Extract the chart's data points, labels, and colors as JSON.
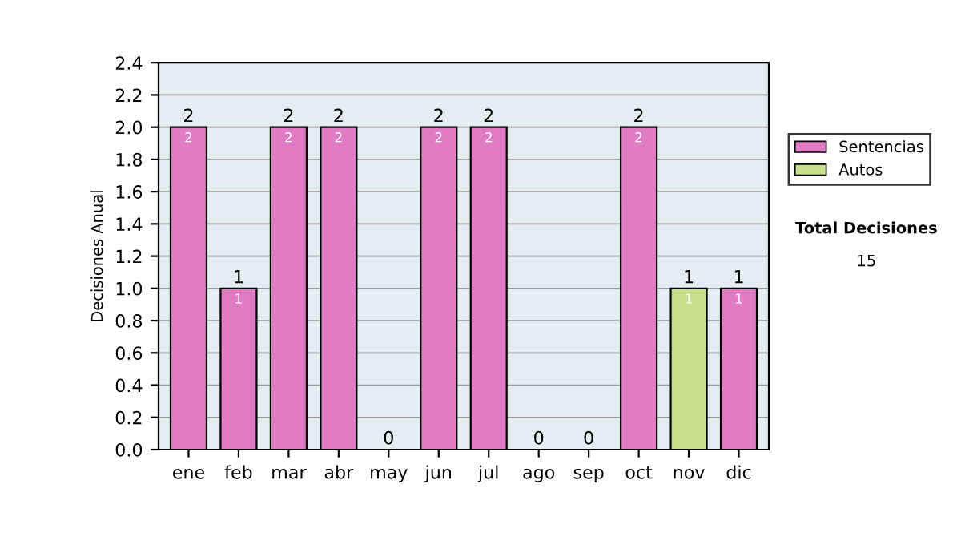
{
  "chart_data": {
    "type": "bar",
    "stacked": true,
    "ylabel": "Decisiones Anual",
    "categories": [
      "ene",
      "feb",
      "mar",
      "abr",
      "may",
      "jun",
      "jul",
      "ago",
      "sep",
      "oct",
      "nov",
      "dic"
    ],
    "series": [
      {
        "name": "Sentencias",
        "color": "#e07cc4",
        "values": [
          2,
          1,
          2,
          2,
          0,
          2,
          2,
          0,
          0,
          2,
          0,
          1
        ],
        "value_labels": [
          "2",
          "1",
          "2",
          "2",
          null,
          "2",
          "2",
          null,
          null,
          "2",
          null,
          "1"
        ]
      },
      {
        "name": "Autos",
        "color": "#c8e08c",
        "values": [
          0,
          0,
          0,
          0,
          0,
          0,
          0,
          0,
          0,
          0,
          1,
          0
        ],
        "value_labels": [
          null,
          null,
          null,
          null,
          null,
          null,
          null,
          null,
          null,
          null,
          "1",
          null
        ]
      }
    ],
    "totals": [
      "2",
      "1",
      "2",
      "2",
      "0",
      "2",
      "2",
      "0",
      "0",
      "2",
      "1",
      "1"
    ],
    "ylim": [
      0,
      2.4
    ],
    "yticks": [
      {
        "value": 0,
        "label": "0.0"
      },
      {
        "value": 0.2,
        "label": "0.2"
      },
      {
        "value": 0.4,
        "label": "0.4"
      },
      {
        "value": 0.6,
        "label": "0.6"
      },
      {
        "value": 0.8,
        "label": "0.8"
      },
      {
        "value": 1,
        "label": "1.0"
      },
      {
        "value": 1.2,
        "label": "1.2"
      },
      {
        "value": 1.4,
        "label": "1.4"
      },
      {
        "value": 1.6,
        "label": "1.6"
      },
      {
        "value": 1.8,
        "label": "1.8"
      },
      {
        "value": 2,
        "label": "2.0"
      },
      {
        "value": 2.2,
        "label": "2.2"
      },
      {
        "value": 2.4,
        "label": "2.4"
      }
    ],
    "grid": "y",
    "legend": "right",
    "annotations": [
      "Total Decisiones",
      "15"
    ]
  }
}
